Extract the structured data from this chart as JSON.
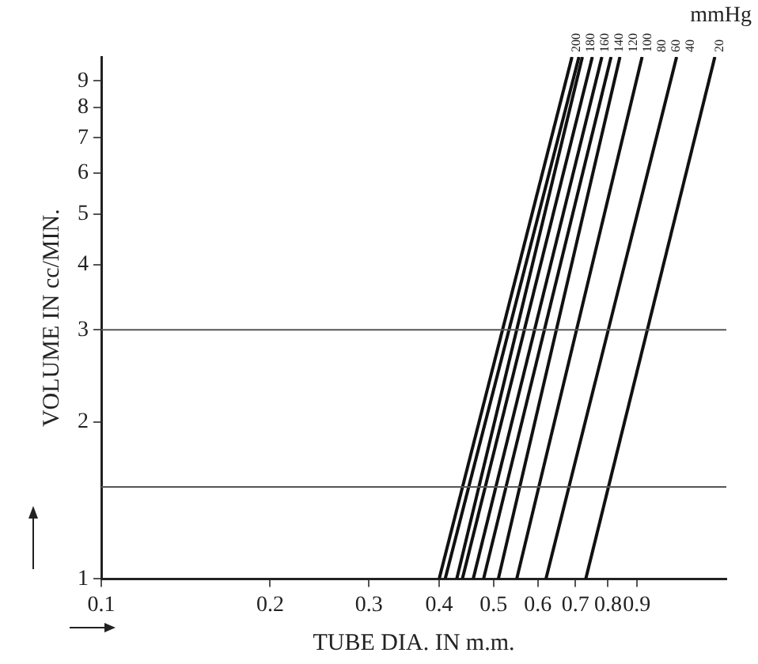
{
  "chart_data": {
    "type": "line",
    "xlabel": "TUBE DIA. IN m.m.",
    "ylabel": "VOLUME IN cc/MIN.",
    "log": "xy",
    "xlim": [
      0.1,
      1.3
    ],
    "ylim": [
      1,
      10
    ],
    "xticks": [
      0.1,
      0.2,
      0.3,
      0.4,
      0.5,
      0.6,
      0.7,
      0.8,
      0.9
    ],
    "yticks": [
      1,
      2,
      3,
      4,
      5,
      6,
      7,
      8,
      9
    ],
    "grid": false,
    "legend": false,
    "marker": "none",
    "line_style": "solid",
    "annotations": [
      "mmHg"
    ],
    "ref_lines": [
      {
        "axis": "y",
        "value": 3,
        "color": "#555555"
      },
      {
        "axis": "y",
        "value": 1.5,
        "color": "#555555"
      }
    ],
    "series": [
      {
        "name": "200",
        "color": "#111111",
        "x": [
          0.4,
          0.69
        ],
        "values": [
          1,
          10
        ]
      },
      {
        "name": "180",
        "color": "#111111",
        "x": [
          0.41,
          0.71
        ],
        "values": [
          1,
          10
        ]
      },
      {
        "name": "160",
        "color": "#111111",
        "x": [
          0.43,
          0.72
        ],
        "values": [
          1,
          10
        ]
      },
      {
        "name": "140",
        "color": "#111111",
        "x": [
          0.44,
          0.75
        ],
        "values": [
          1,
          10
        ]
      },
      {
        "name": "120",
        "color": "#111111",
        "x": [
          0.46,
          0.78
        ],
        "values": [
          1,
          10
        ]
      },
      {
        "name": "100",
        "color": "#111111",
        "x": [
          0.48,
          0.81
        ],
        "values": [
          1,
          10
        ]
      },
      {
        "name": "80",
        "color": "#111111",
        "x": [
          0.51,
          0.84
        ],
        "values": [
          1,
          10
        ]
      },
      {
        "name": "60",
        "color": "#111111",
        "x": [
          0.55,
          0.92
        ],
        "values": [
          1,
          10
        ]
      },
      {
        "name": "40",
        "color": "#111111",
        "x": [
          0.62,
          1.06
        ],
        "values": [
          1,
          10
        ]
      },
      {
        "name": "20",
        "color": "#111111",
        "x": [
          0.73,
          1.24
        ],
        "values": [
          1,
          10
        ]
      }
    ]
  }
}
